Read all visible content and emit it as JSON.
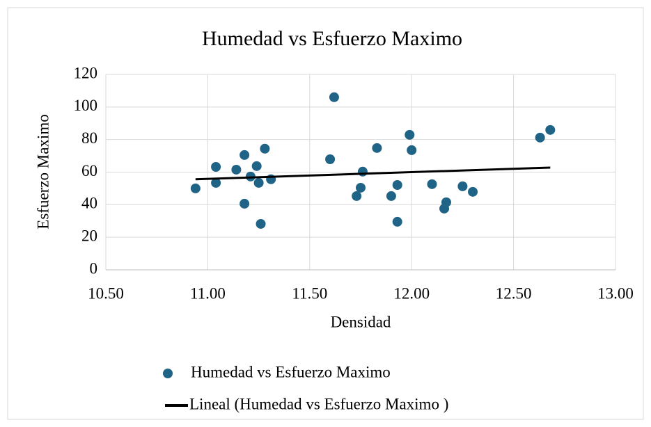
{
  "chart_data": {
    "type": "scatter",
    "title": "Humedad vs Esfuerzo Maximo",
    "x_label": "Densidad",
    "y_label": "Esfuerzo Maximo",
    "xlim": [
      10.5,
      13.0
    ],
    "xticks": [
      {
        "value": 10.5,
        "label": "10.50"
      },
      {
        "value": 11.0,
        "label": "11.00"
      },
      {
        "value": 11.5,
        "label": "11.50"
      },
      {
        "value": 12.0,
        "label": "12.00"
      },
      {
        "value": 12.5,
        "label": "12.50"
      },
      {
        "value": 13.0,
        "label": "13.00"
      }
    ],
    "ylim": [
      0,
      120
    ],
    "yticks": [
      0,
      20,
      40,
      60,
      80,
      100,
      120
    ],
    "grid": true,
    "legend": "bottom",
    "series": [
      {
        "name": "Humedad vs Esfuerzo Maximo",
        "color": "#1f6387",
        "x": [
          10.94,
          11.04,
          11.04,
          11.14,
          11.18,
          11.18,
          11.21,
          11.31,
          11.24,
          11.25,
          11.26,
          11.28,
          11.6,
          11.62,
          11.73,
          11.75,
          11.76,
          11.83,
          11.9,
          11.93,
          11.93,
          11.99,
          12.0,
          12.1,
          12.16,
          12.17,
          12.25,
          12.3,
          12.63,
          12.68
        ],
        "values": [
          50,
          63.2,
          53.4,
          61.5,
          70.5,
          40.6,
          57.3,
          55.6,
          63.7,
          53.4,
          28.2,
          74.4,
          67.9,
          106,
          45.3,
          50.4,
          60.3,
          74.8,
          45.3,
          52.1,
          29.5,
          82.9,
          73.5,
          52.6,
          37.6,
          41.5,
          51.3,
          47.9,
          81.2,
          85.9
        ]
      },
      {
        "name": "Lineal (Humedad vs Esfuerzo Maximo )",
        "color": "#000000",
        "kind": "line",
        "x": [
          10.94,
          12.68
        ],
        "values": [
          55.6,
          62.8
        ]
      }
    ]
  }
}
